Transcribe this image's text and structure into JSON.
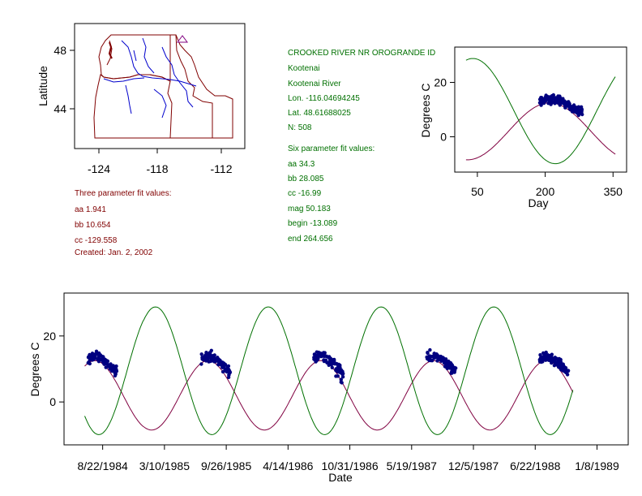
{
  "colors": {
    "green": "#007000",
    "maroon": "#800040",
    "points": "#000080",
    "map_outline": "#800000",
    "rivers": "#0000cc"
  },
  "map": {
    "ylabel": "Latitude",
    "xticks": [
      "-124",
      "-118",
      "-112"
    ],
    "yticks": [
      "48",
      "44"
    ]
  },
  "station": {
    "name": "CROOKED RIVER NR OROGRANDE ID",
    "basin": "Kootenai",
    "river": "Kootenai River",
    "lon": "Lon. -116.04694245",
    "lat": "Lat. 48.61688025",
    "n": "N: 508",
    "six_header": "Six parameter fit values:",
    "six_aa": "aa 34.3",
    "six_bb": "bb 28.085",
    "six_cc": "cc -16.99",
    "six_mag": "mag 50.183",
    "six_begin": "begin -13.089",
    "six_end": "end 264.656"
  },
  "three": {
    "header": "Three parameter fit values:",
    "aa": "aa 1.941",
    "bb": "bb 10.654",
    "cc": "cc -129.558",
    "created": "Created:   Jan. 2, 2002"
  },
  "chart_data": [
    {
      "type": "scatter",
      "xlabel": "Day",
      "ylabel": "Degrees C",
      "xticks": [
        50,
        200,
        350
      ],
      "yticks": [
        0,
        20
      ],
      "xlim": [
        0,
        380
      ],
      "ylim": [
        -13,
        33
      ],
      "curves": {
        "green": {
          "mean": 9.45,
          "amp": 19.35,
          "peak_day": 40
        },
        "maroon": {
          "mean": 2.0,
          "amp": 10.5,
          "peak_day": 210
        }
      },
      "points_day_range": [
        188,
        282
      ],
      "points_peak_day": 210,
      "points_center": 12.0
    },
    {
      "type": "scatter",
      "xlabel": "Date",
      "ylabel": "Degrees C",
      "xtick_labels": [
        "8/22/1984",
        "3/10/1985",
        "9/26/1985",
        "4/14/1986",
        "10/31/1986",
        "5/19/1987",
        "12/5/1987",
        "6/22/1988",
        "1/8/1989"
      ],
      "yticks": [
        0,
        20
      ],
      "ylim": [
        -13,
        33
      ],
      "x_start": "1984-04-19",
      "x_end": "1989-04-19",
      "season_days": [
        188,
        282
      ],
      "season_years": [
        1984,
        1985,
        1986,
        1987,
        1988
      ]
    }
  ]
}
